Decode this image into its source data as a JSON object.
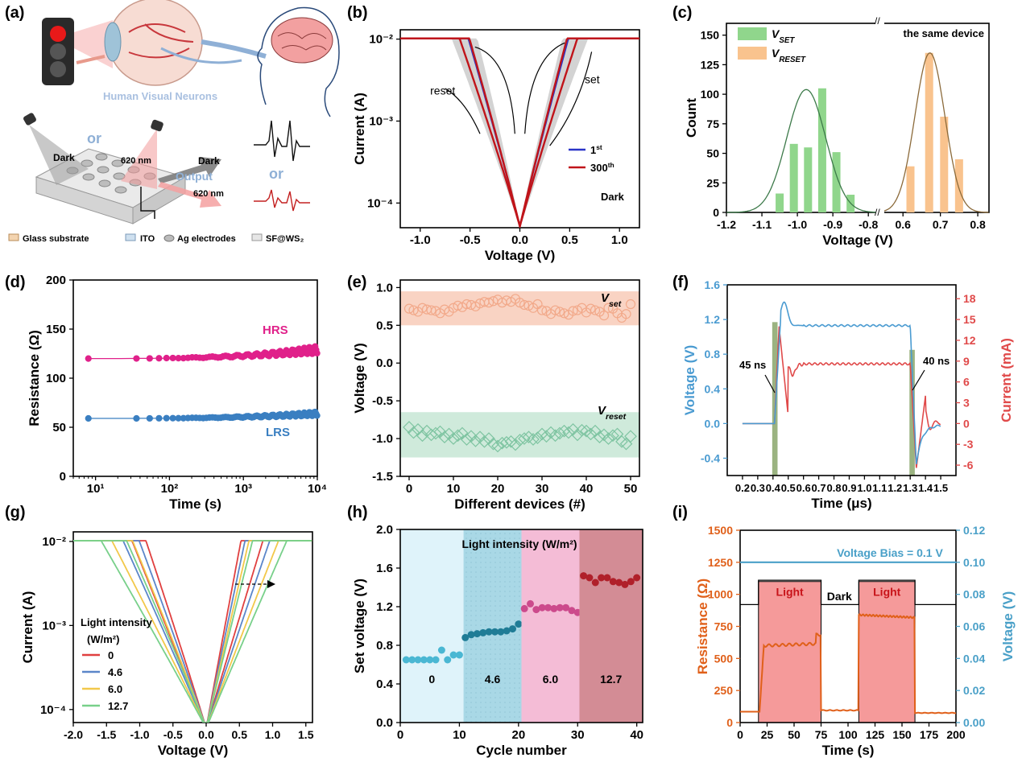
{
  "panel_labels": [
    "(a)",
    "(b)",
    "(c)",
    "(d)",
    "(e)",
    "(f)",
    "(g)",
    "(h)",
    "(i)"
  ],
  "schematic": {
    "human_label": "Human Visual Neurons",
    "dark": "Dark",
    "or": "or",
    "wavelength": "620 nm",
    "output": "Output",
    "legend": [
      "Glass substrate",
      "ITO",
      "Ag electrodes",
      "SF@WS₂"
    ]
  },
  "chart_data": [
    {
      "panel": "b",
      "type": "line",
      "xlabel": "Voltage (V)",
      "ylabel": "Current (A)",
      "yscale": "log",
      "xlim": [
        -1.2,
        1.2
      ],
      "ylim": [
        5e-05,
        0.013
      ],
      "xticks": [
        -1.0,
        -0.5,
        0.0,
        0.5,
        1.0
      ],
      "ytick_labels": [
        "10⁻⁴",
        "10⁻³",
        "10⁻²"
      ],
      "series": [
        {
          "name": "1st"
        },
        {
          "name": "300th"
        }
      ],
      "annotations": [
        "reset",
        "set",
        "Dark"
      ]
    },
    {
      "panel": "c",
      "type": "bar",
      "xlabel": "Voltage (V)",
      "ylabel": "Count",
      "ylim": [
        0,
        160
      ],
      "xtick_labels": [
        "-1.2",
        "-1.1",
        "-1.0",
        "-0.9",
        "-0.8",
        "0.6",
        "0.7",
        "0.8"
      ],
      "yticks": [
        0,
        25,
        50,
        75,
        100,
        125,
        150
      ],
      "series": [
        {
          "name": "V_SET",
          "color": "#90d68c",
          "x": [
            -1.05,
            -1.01,
            -0.97,
            -0.93,
            -0.89,
            -0.85
          ],
          "values": [
            16,
            58,
            55,
            105,
            51,
            15
          ]
        },
        {
          "name": "V_RESET",
          "color": "#f9c38e",
          "x": [
            0.62,
            0.67,
            0.71,
            0.75
          ],
          "values": [
            39,
            135,
            81,
            45
          ]
        }
      ],
      "annotation": "the same device",
      "legend_labels": {
        "set_main": "V",
        "set_sub": "SET",
        "reset_main": "V",
        "reset_sub": "RESET"
      }
    },
    {
      "panel": "d",
      "type": "scatter",
      "xlabel": "Time (s)",
      "ylabel": "Resistance (Ω)",
      "xscale": "log",
      "xlim": [
        5,
        10000
      ],
      "ylim": [
        0,
        200
      ],
      "xtick_labels": [
        "10¹",
        "10²",
        "10³",
        "10⁴"
      ],
      "yticks": [
        0,
        50,
        100,
        150,
        200
      ],
      "series": [
        {
          "name": "HRS",
          "color": "#e0218a",
          "value_range": [
            120,
            133
          ]
        },
        {
          "name": "LRS",
          "color": "#3a7fc1",
          "value_range": [
            59,
            66
          ]
        }
      ]
    },
    {
      "panel": "e",
      "type": "scatter",
      "xlabel": "Different devices (#)",
      "ylabel": "Voltage (V)",
      "xlim": [
        -2,
        52
      ],
      "ylim": [
        -1.5,
        1.1
      ],
      "xticks": [
        0,
        10,
        20,
        30,
        40,
        50
      ],
      "yticks": [
        -1.5,
        -1.0,
        -0.5,
        0.0,
        0.5,
        1.0
      ],
      "bands": [
        {
          "from": 0.5,
          "to": 0.95,
          "color": "#f9d3c3"
        },
        {
          "from": -1.25,
          "to": -0.65,
          "color": "#cfeadb"
        }
      ],
      "series": [
        {
          "name": "Vset",
          "color": "#f2a98a",
          "values": [
            0.72,
            0.7,
            0.68,
            0.73,
            0.71,
            0.7,
            0.69,
            0.66,
            0.71,
            0.68,
            0.73,
            0.76,
            0.74,
            0.78,
            0.77,
            0.75,
            0.79,
            0.81,
            0.8,
            0.82,
            0.84,
            0.8,
            0.83,
            0.81,
            0.85,
            0.8,
            0.77,
            0.76,
            0.73,
            0.78,
            0.7,
            0.69,
            0.65,
            0.7,
            0.68,
            0.66,
            0.64,
            0.69,
            0.7,
            0.73,
            0.67,
            0.72,
            0.7,
            0.68,
            0.63,
            0.73,
            0.72,
            0.66,
            0.6,
            0.65,
            0.78
          ]
        },
        {
          "name": "Vreset",
          "color": "#7ec4a1",
          "values": [
            -0.85,
            -0.92,
            -0.88,
            -0.96,
            -0.9,
            -0.95,
            -0.93,
            -0.91,
            -0.98,
            -0.94,
            -1.0,
            -0.96,
            -0.93,
            -1.01,
            -0.97,
            -1.03,
            -0.98,
            -1.04,
            -1.0,
            -1.07,
            -1.1,
            -1.06,
            -1.05,
            -1.04,
            -1.08,
            -1.02,
            -1.0,
            -0.98,
            -1.01,
            -0.99,
            -0.94,
            -0.97,
            -0.92,
            -0.96,
            -0.93,
            -0.9,
            -0.92,
            -0.88,
            -0.95,
            -0.89,
            -0.9,
            -0.94,
            -0.9,
            -0.98,
            -0.95,
            -1.0,
            -0.96,
            -0.94,
            -1.04,
            -1.07,
            -0.97
          ]
        }
      ],
      "labels": [
        {
          "main": "V",
          "sub": "set"
        },
        {
          "main": "V",
          "sub": "reset"
        }
      ]
    },
    {
      "panel": "f",
      "type": "line",
      "xlabel": "Time (μs)",
      "ylabel": "Voltage (V)",
      "y2label": "Current (mA)",
      "xlim": [
        0.1,
        1.6
      ],
      "ylim": [
        -0.6,
        1.6
      ],
      "y2lim": [
        -7.5,
        20
      ],
      "xticks": [
        0.2,
        0.3,
        0.4,
        0.5,
        0.6,
        0.7,
        0.8,
        0.9,
        1.0,
        1.1,
        1.2,
        1.3,
        1.4,
        1.5
      ],
      "yticks": [
        -0.4,
        0.0,
        0.4,
        0.8,
        1.2,
        1.6
      ],
      "y2ticks": [
        -6,
        -3,
        0,
        3,
        6,
        9,
        12,
        15,
        18
      ],
      "series": [
        {
          "name": "Voltage",
          "color": "#4a9bd1",
          "axis": "left"
        },
        {
          "name": "Current",
          "color": "#e04a4a",
          "axis": "right"
        }
      ],
      "annotations": [
        "45 ns",
        "40 ns"
      ]
    },
    {
      "panel": "g",
      "type": "line",
      "xlabel": "Voltage (V)",
      "ylabel": "Current (A)",
      "yscale": "log",
      "xlim": [
        -2.0,
        1.6
      ],
      "xticks": [
        -2.0,
        -1.5,
        -1.0,
        -0.5,
        0.0,
        0.5,
        1.0,
        1.5
      ],
      "ytick_labels": [
        "10⁻⁴",
        "10⁻³",
        "10⁻²"
      ],
      "legend_title_1": "Light intensity",
      "legend_title_2": "(W/m²)",
      "series": [
        {
          "name": "0",
          "color": "#e04040"
        },
        {
          "name": "4.6",
          "color": "#5b86c9"
        },
        {
          "name": "6.0",
          "color": "#f2c84a"
        },
        {
          "name": "12.7",
          "color": "#78d08a"
        }
      ]
    },
    {
      "panel": "h",
      "type": "scatter",
      "xlabel": "Cycle number",
      "ylabel": "Set voltage (V)",
      "xlim": [
        0,
        41
      ],
      "ylim": [
        0,
        2.0
      ],
      "xticks": [
        0,
        10,
        20,
        30,
        40
      ],
      "yticks": [
        0.0,
        0.4,
        0.8,
        1.2,
        1.6,
        2.0
      ],
      "title": "Light intensity (W/m²)",
      "groups": [
        {
          "label": "0",
          "color": "#4ab7d3",
          "bg": "#dff3fa",
          "values": [
            0.65,
            0.65,
            0.65,
            0.65,
            0.65,
            0.65,
            0.75,
            0.65,
            0.7,
            0.7
          ]
        },
        {
          "label": "4.6",
          "color": "#1f7c96",
          "bg": "#a9d8e6",
          "values": [
            0.88,
            0.91,
            0.92,
            0.93,
            0.94,
            0.94,
            0.94,
            0.95,
            0.97,
            1.02
          ]
        },
        {
          "label": "6.0",
          "color": "#cc4a8c",
          "bg": "#f4bcd6",
          "values": [
            1.18,
            1.23,
            1.17,
            1.19,
            1.19,
            1.18,
            1.19,
            1.19,
            1.16,
            1.14
          ]
        },
        {
          "label": "12.7",
          "color": "#b0202a",
          "bg": "#d38c95",
          "values": [
            1.52,
            1.5,
            1.45,
            1.5,
            1.5,
            1.46,
            1.45,
            1.43,
            1.46,
            1.5
          ]
        }
      ]
    },
    {
      "panel": "i",
      "type": "line",
      "xlabel": "Time (s)",
      "ylabel": "Resistance (Ω)",
      "y2label": "Voltage (V)",
      "xlim": [
        0,
        200
      ],
      "ylim": [
        0,
        1500
      ],
      "y2lim": [
        0,
        0.12
      ],
      "xticks": [
        0,
        25,
        50,
        75,
        100,
        125,
        150,
        175,
        200
      ],
      "yticks": [
        0,
        250,
        500,
        750,
        1000,
        1250,
        1500
      ],
      "y2ticks": [
        0.0,
        0.02,
        0.04,
        0.06,
        0.08,
        0.1,
        0.12
      ],
      "light_windows": [
        [
          17,
          75
        ],
        [
          110,
          162
        ]
      ],
      "annotations": [
        "Voltage Bias = 0.1 V",
        "Light",
        "Dark",
        "Light"
      ],
      "series": [
        {
          "name": "Resistance",
          "color": "#e0601a"
        },
        {
          "name": "Voltage",
          "color": "#4aa0c8"
        }
      ]
    }
  ]
}
